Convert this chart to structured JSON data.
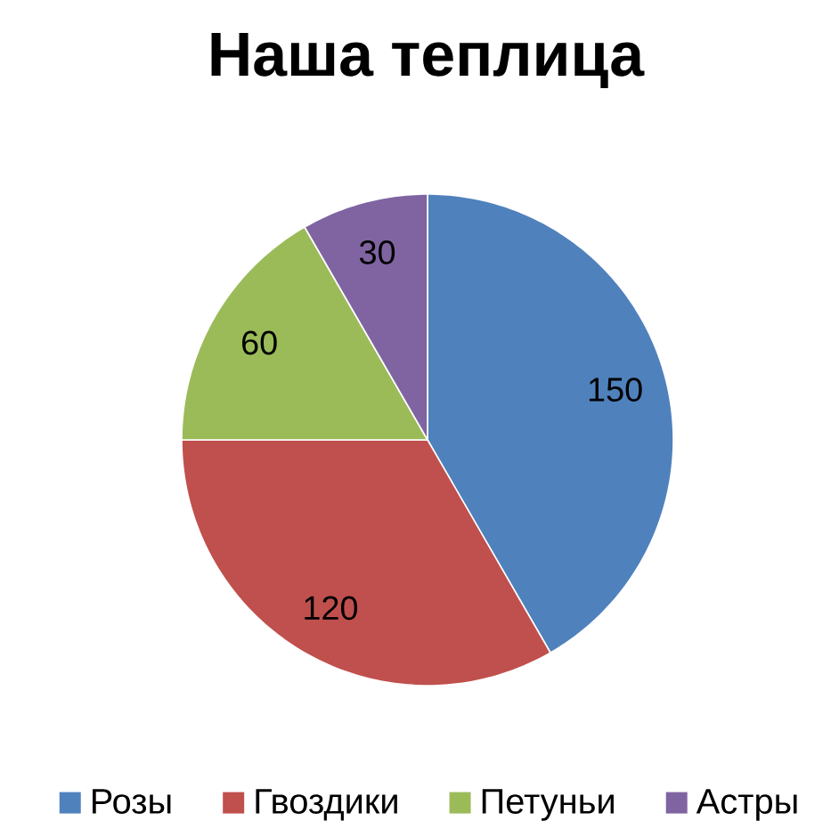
{
  "chart_data": {
    "type": "pie",
    "title": "Наша теплица",
    "categories": [
      "Розы",
      "Гвоздики",
      "Петуньи",
      "Астры"
    ],
    "values": [
      150,
      120,
      60,
      30
    ],
    "colors": [
      "#4f81bd",
      "#c0504d",
      "#9bbb59",
      "#8064a2"
    ],
    "data_labels": true,
    "legend": "bottom"
  }
}
